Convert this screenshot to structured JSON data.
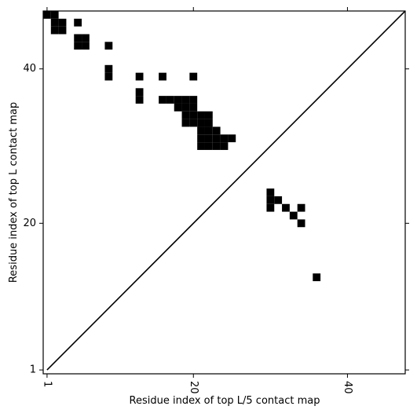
{
  "chart_data": {
    "type": "scatter",
    "marker": "square",
    "color": "#000000",
    "xlabel": "Residue index of top L/5 contact map",
    "ylabel": "Residue index of top L contact map",
    "xlim": [
      0.5,
      47.5
    ],
    "ylim": [
      0.5,
      47.5
    ],
    "xticks": [
      1,
      20,
      40
    ],
    "yticks": [
      1,
      20,
      40
    ],
    "diagonal": true,
    "x": [
      1,
      2,
      2,
      3,
      2,
      3,
      5,
      5,
      6,
      5,
      6,
      9,
      9,
      9,
      13,
      16,
      20,
      13,
      13,
      16,
      17,
      18,
      19,
      20,
      18,
      19,
      20,
      19,
      20,
      21,
      22,
      19,
      20,
      21,
      22,
      21,
      22,
      23,
      21,
      22,
      23,
      24,
      25,
      21,
      22,
      23,
      24,
      30,
      30,
      31,
      30,
      32,
      34,
      33,
      34,
      36
    ],
    "y": [
      47,
      47,
      46,
      46,
      45,
      45,
      46,
      44,
      44,
      43,
      43,
      43,
      40,
      39,
      39,
      39,
      39,
      37,
      36,
      36,
      36,
      36,
      36,
      36,
      35,
      35,
      35,
      34,
      34,
      34,
      34,
      33,
      33,
      33,
      33,
      32,
      32,
      32,
      31,
      31,
      31,
      31,
      31,
      30,
      30,
      30,
      30,
      24,
      23,
      23,
      22,
      22,
      22,
      21,
      20,
      13
    ]
  }
}
